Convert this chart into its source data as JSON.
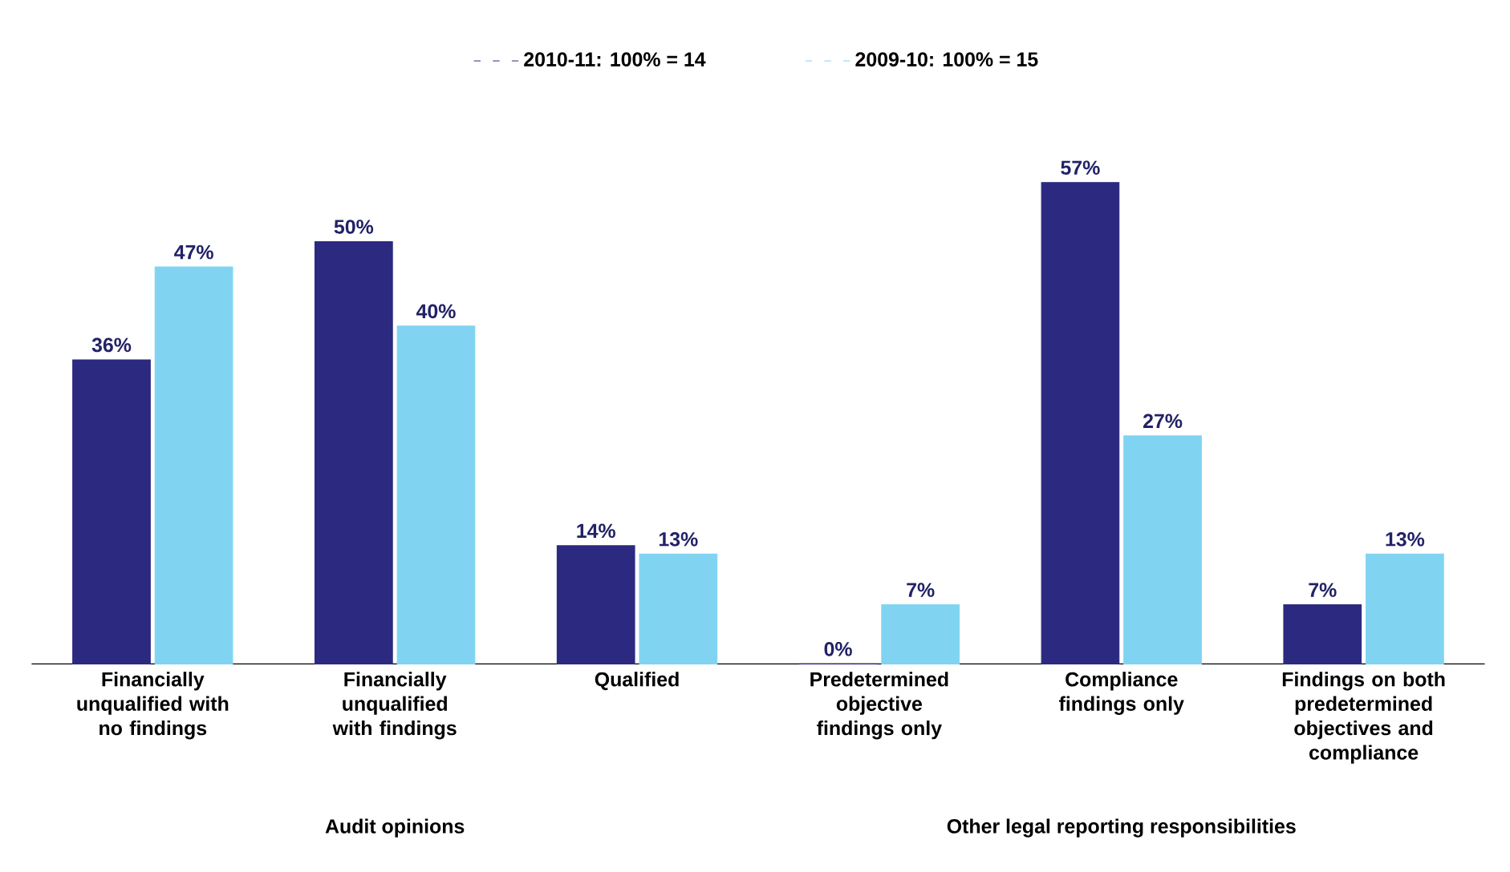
{
  "chart_data": {
    "type": "bar",
    "categories": [
      "Financially unqualified with no findings",
      "Financially unqualified with findings",
      "Qualified",
      "Predetermined objective findings only",
      "Compliance findings only",
      "Findings on both predetermined objectives and compliance"
    ],
    "series": [
      {
        "name": "2010-11: 100% = 14",
        "color": "#2b2a80",
        "values": [
          36,
          50,
          14,
          0,
          57,
          7
        ],
        "value_labels": [
          "36%",
          "50%",
          "14%",
          "0%",
          "57%",
          "7%"
        ]
      },
      {
        "name": "2009-10: 100% = 15",
        "color": "#80d4f2",
        "values": [
          47,
          40,
          13,
          7,
          27,
          13
        ],
        "value_labels": [
          "47%",
          "40%",
          "13%",
          "7%",
          "27%",
          "13%"
        ]
      }
    ],
    "annotations": [
      "Audit opinions",
      "Other legal reporting responsibilities"
    ],
    "legend": "top"
  }
}
